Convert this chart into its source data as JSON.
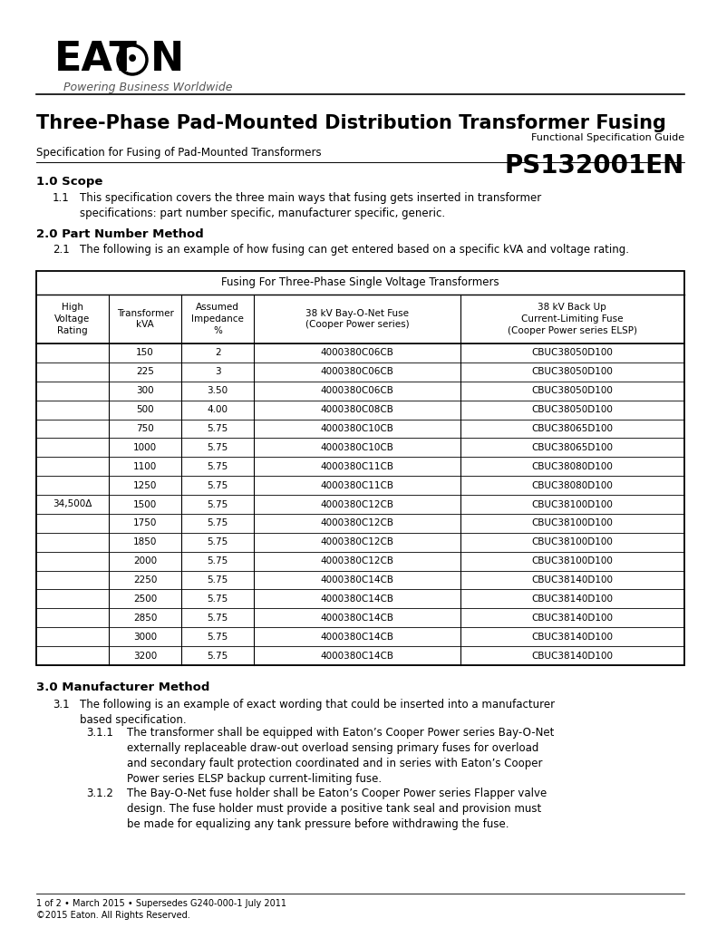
{
  "title": "Three-Phase Pad-Mounted Distribution Transformer Fusing",
  "functional_spec": "Functional Specification Guide",
  "doc_number": "PS132001EN",
  "spec_label": "Specification for Fusing of Pad-Mounted Transformers",
  "section1_header": "1.0 Scope",
  "section1_1_prefix": "1.1",
  "section1_1_text": "This specification covers the three main ways that fusing gets inserted in transformer specifications: part number specific, manufacturer specific, generic.",
  "section2_header": "2.0 Part Number Method",
  "section2_1_prefix": "2.1",
  "section2_1_text": "The following is an example of how fusing can get entered based on a specific kVA and voltage rating.",
  "table_title": "Fusing For Three-Phase Single Voltage Transformers",
  "col_headers": [
    "High\nVoltage\nRating",
    "Transformer\nkVA",
    "Assumed\nImpedance\n%",
    "38 kV Bay-O-Net Fuse\n(Cooper Power series)",
    "38 kV Back Up\nCurrent-Limiting Fuse\n(Cooper Power series ELSP)"
  ],
  "high_voltage_rating": "34,500Δ",
  "hv_label_row": 8,
  "table_data": [
    [
      "150",
      "2",
      "4000380C06CB",
      "CBUC38050D100"
    ],
    [
      "225",
      "3",
      "4000380C06CB",
      "CBUC38050D100"
    ],
    [
      "300",
      "3.50",
      "4000380C06CB",
      "CBUC38050D100"
    ],
    [
      "500",
      "4.00",
      "4000380C08CB",
      "CBUC38050D100"
    ],
    [
      "750",
      "5.75",
      "4000380C10CB",
      "CBUC38065D100"
    ],
    [
      "1000",
      "5.75",
      "4000380C10CB",
      "CBUC38065D100"
    ],
    [
      "1100",
      "5.75",
      "4000380C11CB",
      "CBUC38080D100"
    ],
    [
      "1250",
      "5.75",
      "4000380C11CB",
      "CBUC38080D100"
    ],
    [
      "1500",
      "5.75",
      "4000380C12CB",
      "CBUC38100D100"
    ],
    [
      "1750",
      "5.75",
      "4000380C12CB",
      "CBUC38100D100"
    ],
    [
      "1850",
      "5.75",
      "4000380C12CB",
      "CBUC38100D100"
    ],
    [
      "2000",
      "5.75",
      "4000380C12CB",
      "CBUC38100D100"
    ],
    [
      "2250",
      "5.75",
      "4000380C14CB",
      "CBUC38140D100"
    ],
    [
      "2500",
      "5.75",
      "4000380C14CB",
      "CBUC38140D100"
    ],
    [
      "2850",
      "5.75",
      "4000380C14CB",
      "CBUC38140D100"
    ],
    [
      "3000",
      "5.75",
      "4000380C14CB",
      "CBUC38140D100"
    ],
    [
      "3200",
      "5.75",
      "4000380C14CB",
      "CBUC38140D100"
    ]
  ],
  "section3_header": "3.0 Manufacturer Method",
  "section3_1_prefix": "3.1",
  "section3_1_text": "The following is an example of exact wording that could be inserted into a manufacturer based specification.",
  "section3_1_1_label": "3.1.1",
  "section3_1_1_text": "The transformer shall be equipped with Eaton’s Cooper Power series Bay-O-Net externally replaceable draw-out overload sensing primary fuses for overload and secondary fault protection coordinated and in series with Eaton’s Cooper Power series ELSP backup current-limiting fuse.",
  "section3_1_2_label": "3.1.2",
  "section3_1_2_text": "The Bay-O-Net fuse holder shall be Eaton’s Cooper Power series Flapper valve design. The fuse holder must provide a positive tank seal and provision must be made for equalizing any tank pressure before withdrawing the fuse.",
  "footer_line1": "1 of 2 • March 2015 • Supersedes G240-000-1 July 2011",
  "footer_line2": "©2015 Eaton. All Rights Reserved.",
  "bg_color": "#ffffff"
}
